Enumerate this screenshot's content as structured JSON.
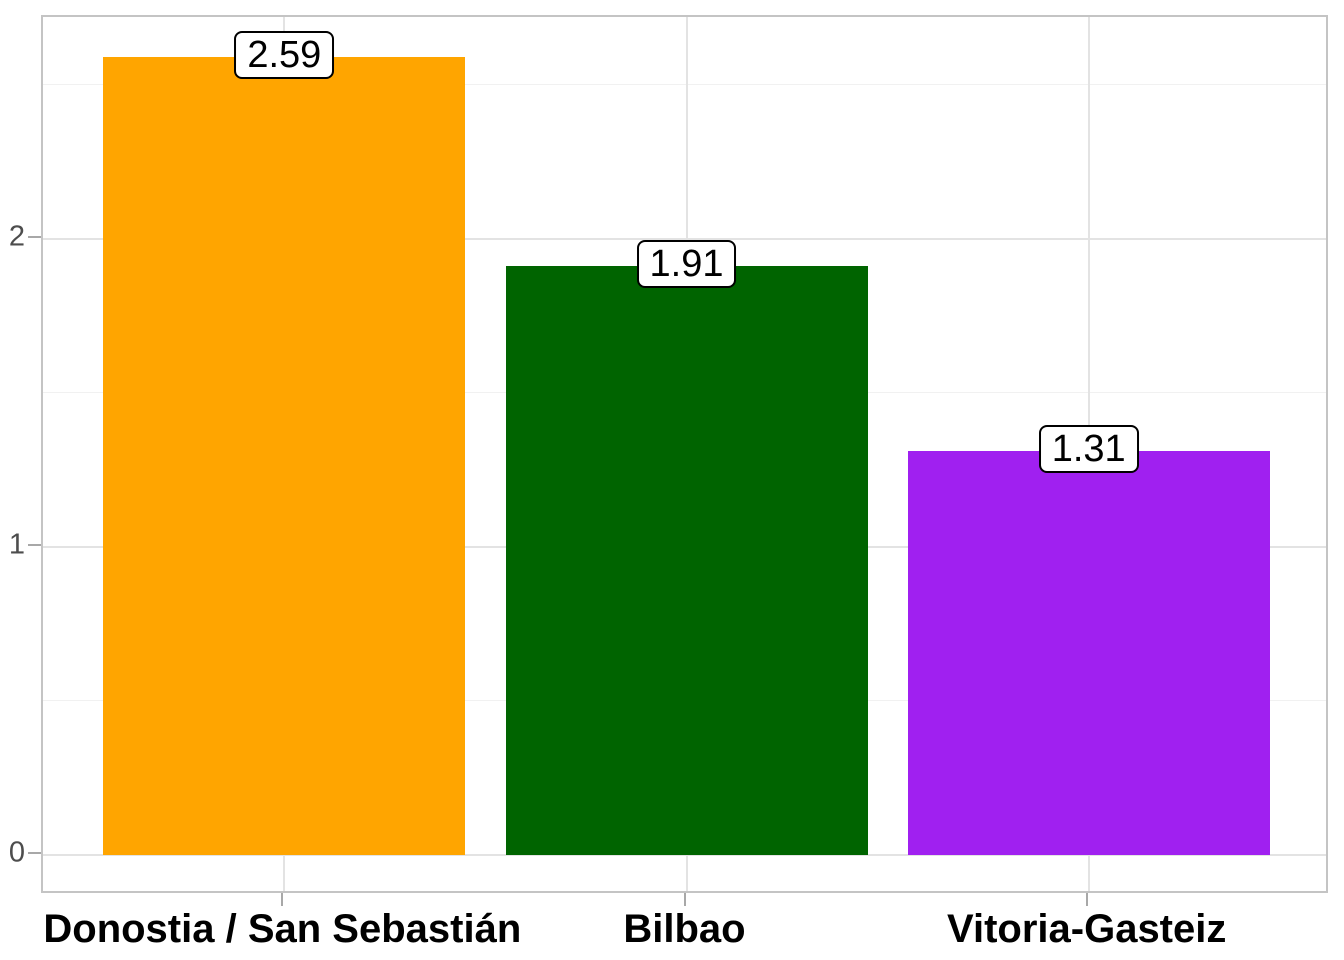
{
  "chart_data": {
    "type": "bar",
    "title": "",
    "xlabel": "",
    "ylabel": "",
    "categories": [
      "Donostia / San Sebastián",
      "Bilbao",
      "Vitoria-Gasteiz"
    ],
    "values": [
      2.59,
      1.91,
      1.31
    ],
    "value_labels": [
      "2.59",
      "1.91",
      "1.31"
    ],
    "bar_colors": [
      "#FFA500",
      "#006400",
      "#A020F0"
    ],
    "y_major_ticks": [
      0,
      1,
      2
    ],
    "y_major_tick_labels": [
      "0",
      "1",
      "2"
    ],
    "y_minor_ticks": [
      0.5,
      1.5,
      2.5
    ],
    "ylim": [
      -0.1295,
      2.7195
    ],
    "grid": "horizontal major+minor, vertical major at category centers",
    "legend": "none",
    "background": "#ffffff"
  },
  "styles": {
    "panel_border_color": "#c4c4c4",
    "grid_major_color": "#e3e3e3",
    "grid_minor_color": "#f1f1f1",
    "tick_mark_color": "#a8a8a8",
    "y_tick_label_color": "#4d4d4d",
    "category_label_color": "#000000",
    "value_label_bg": "#ffffff",
    "value_label_border": "#000000"
  }
}
